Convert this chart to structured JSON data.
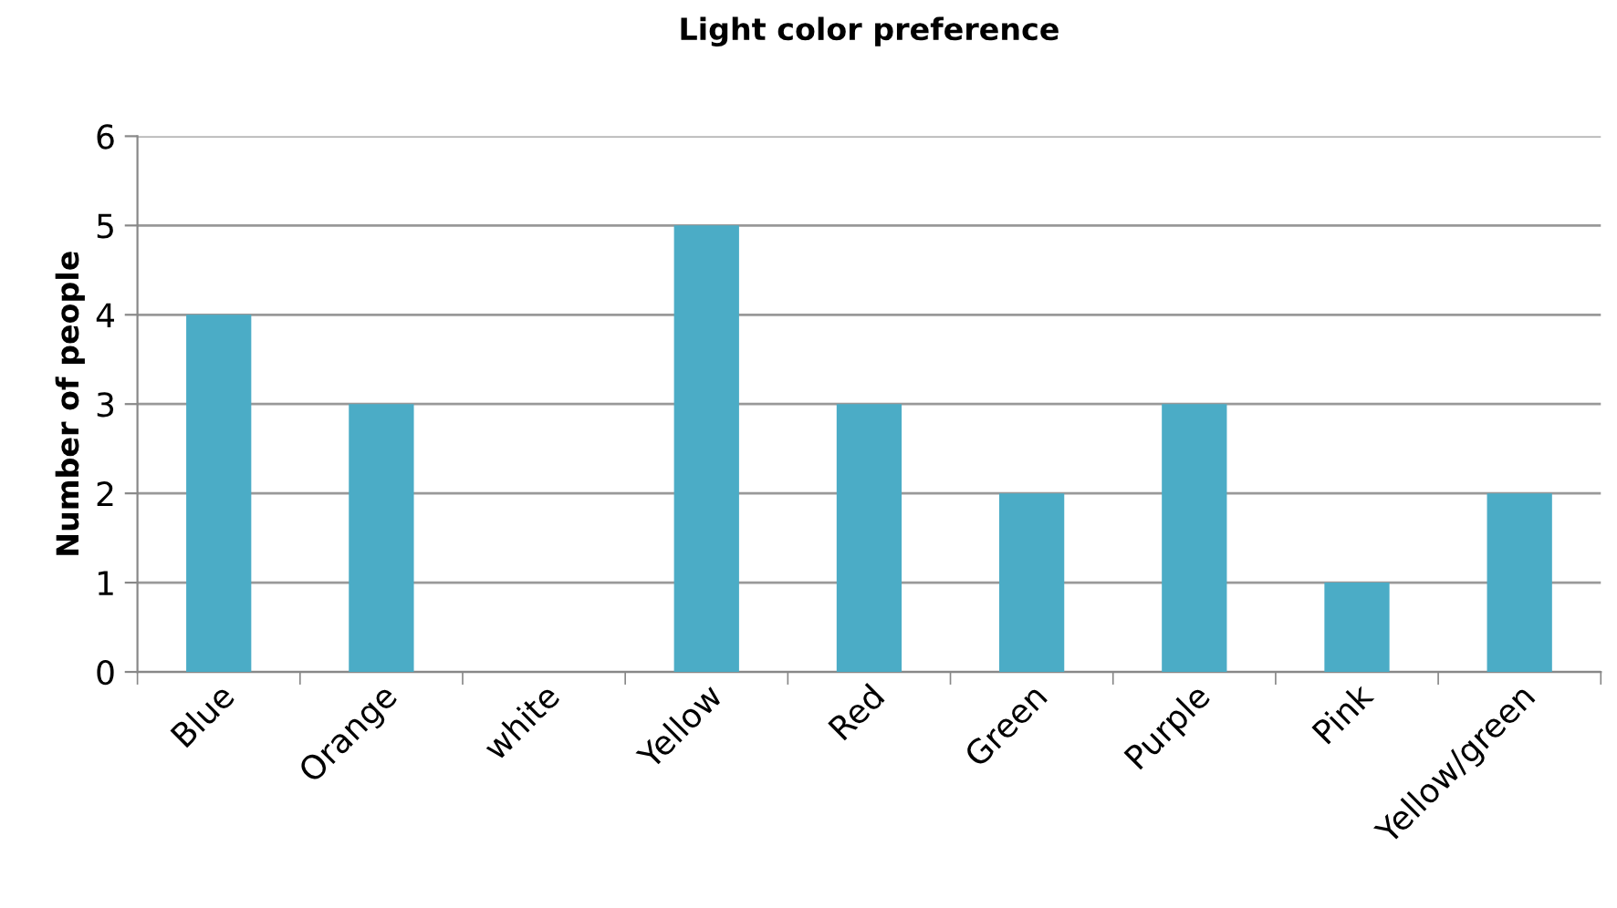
{
  "chart_data": {
    "type": "bar",
    "title": "Light color preference",
    "ylabel": "Number of people",
    "categories": [
      "Blue",
      "Orange",
      "white",
      "Yellow",
      "Red",
      "Green",
      "Purple",
      "Pink",
      "Yellow/green"
    ],
    "values": [
      4,
      3,
      0,
      5,
      3,
      2,
      3,
      1,
      2
    ],
    "color": "#4bacc6",
    "ylim": [
      0,
      6
    ],
    "yticks": [
      0,
      1,
      2,
      3,
      4,
      5,
      6
    ],
    "grid": "y",
    "legend": false
  }
}
